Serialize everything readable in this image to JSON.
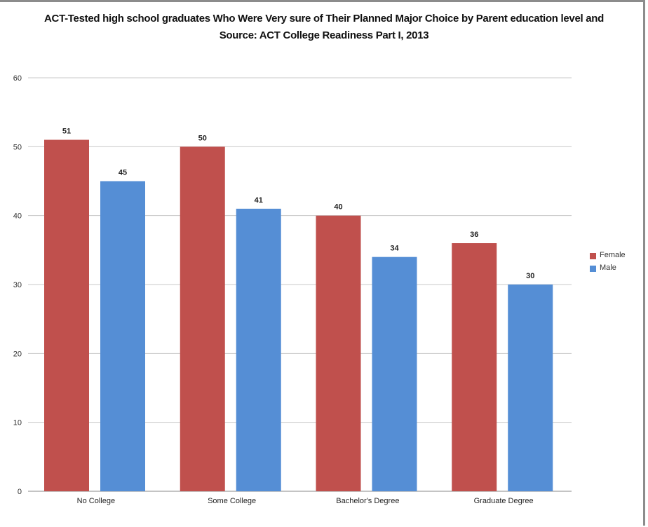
{
  "chart_data": {
    "type": "bar",
    "title": "ACT-Tested high school graduates Who Were Very sure of Their Planned Major Choice by Parent education level and",
    "subtitle": "Source: ACT College Readiness Part I, 2013",
    "categories": [
      "No College",
      "Some College",
      "Bachelor's Degree",
      "Graduate Degree"
    ],
    "series": [
      {
        "name": "Female",
        "color": "#c0504d",
        "values": [
          51,
          50,
          40,
          36
        ]
      },
      {
        "name": "Male",
        "color": "#558ed5",
        "values": [
          45,
          41,
          34,
          30
        ]
      }
    ],
    "ylim": [
      0,
      60
    ],
    "yticks": [
      0,
      10,
      20,
      30,
      40,
      50,
      60
    ],
    "grid": true,
    "legend": "right",
    "xlabel": "",
    "ylabel": ""
  }
}
